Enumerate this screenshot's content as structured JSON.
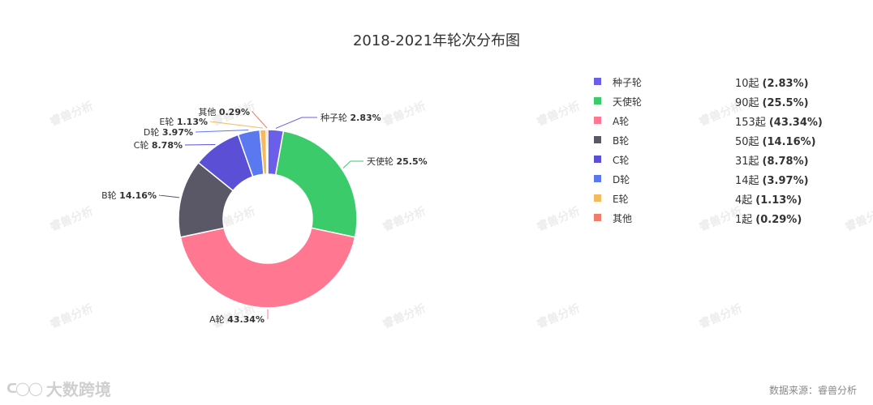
{
  "title": "2018-2021年轮次分布图",
  "source": "数据来源：睿兽分析",
  "footer_logo": "大数跨境",
  "watermark": "睿兽分析",
  "chart_data": {
    "type": "pie",
    "title": "2018-2021年轮次分布图",
    "donut": true,
    "legend_position": "right",
    "count_unit": "起",
    "slices": [
      {
        "name": "种子轮",
        "count": 10,
        "percent": "2.83%",
        "value": 2.83,
        "color": "#6b5ee8"
      },
      {
        "name": "天使轮",
        "count": 90,
        "percent": "25.5%",
        "value": 25.5,
        "color": "#3ccb6b"
      },
      {
        "name": "A轮",
        "count": 153,
        "percent": "43.34%",
        "value": 43.34,
        "color": "#ff7790"
      },
      {
        "name": "B轮",
        "count": 50,
        "percent": "14.16%",
        "value": 14.16,
        "color": "#5a5766"
      },
      {
        "name": "C轮",
        "count": 31,
        "percent": "8.78%",
        "value": 8.78,
        "color": "#5b4fd6"
      },
      {
        "name": "D轮",
        "count": 14,
        "percent": "3.97%",
        "value": 3.97,
        "color": "#5a78f0"
      },
      {
        "name": "E轮",
        "count": 4,
        "percent": "1.13%",
        "value": 1.13,
        "color": "#f5b960"
      },
      {
        "name": "其他",
        "count": 1,
        "percent": "0.29%",
        "value": 0.29,
        "color": "#f27c6a"
      }
    ]
  }
}
